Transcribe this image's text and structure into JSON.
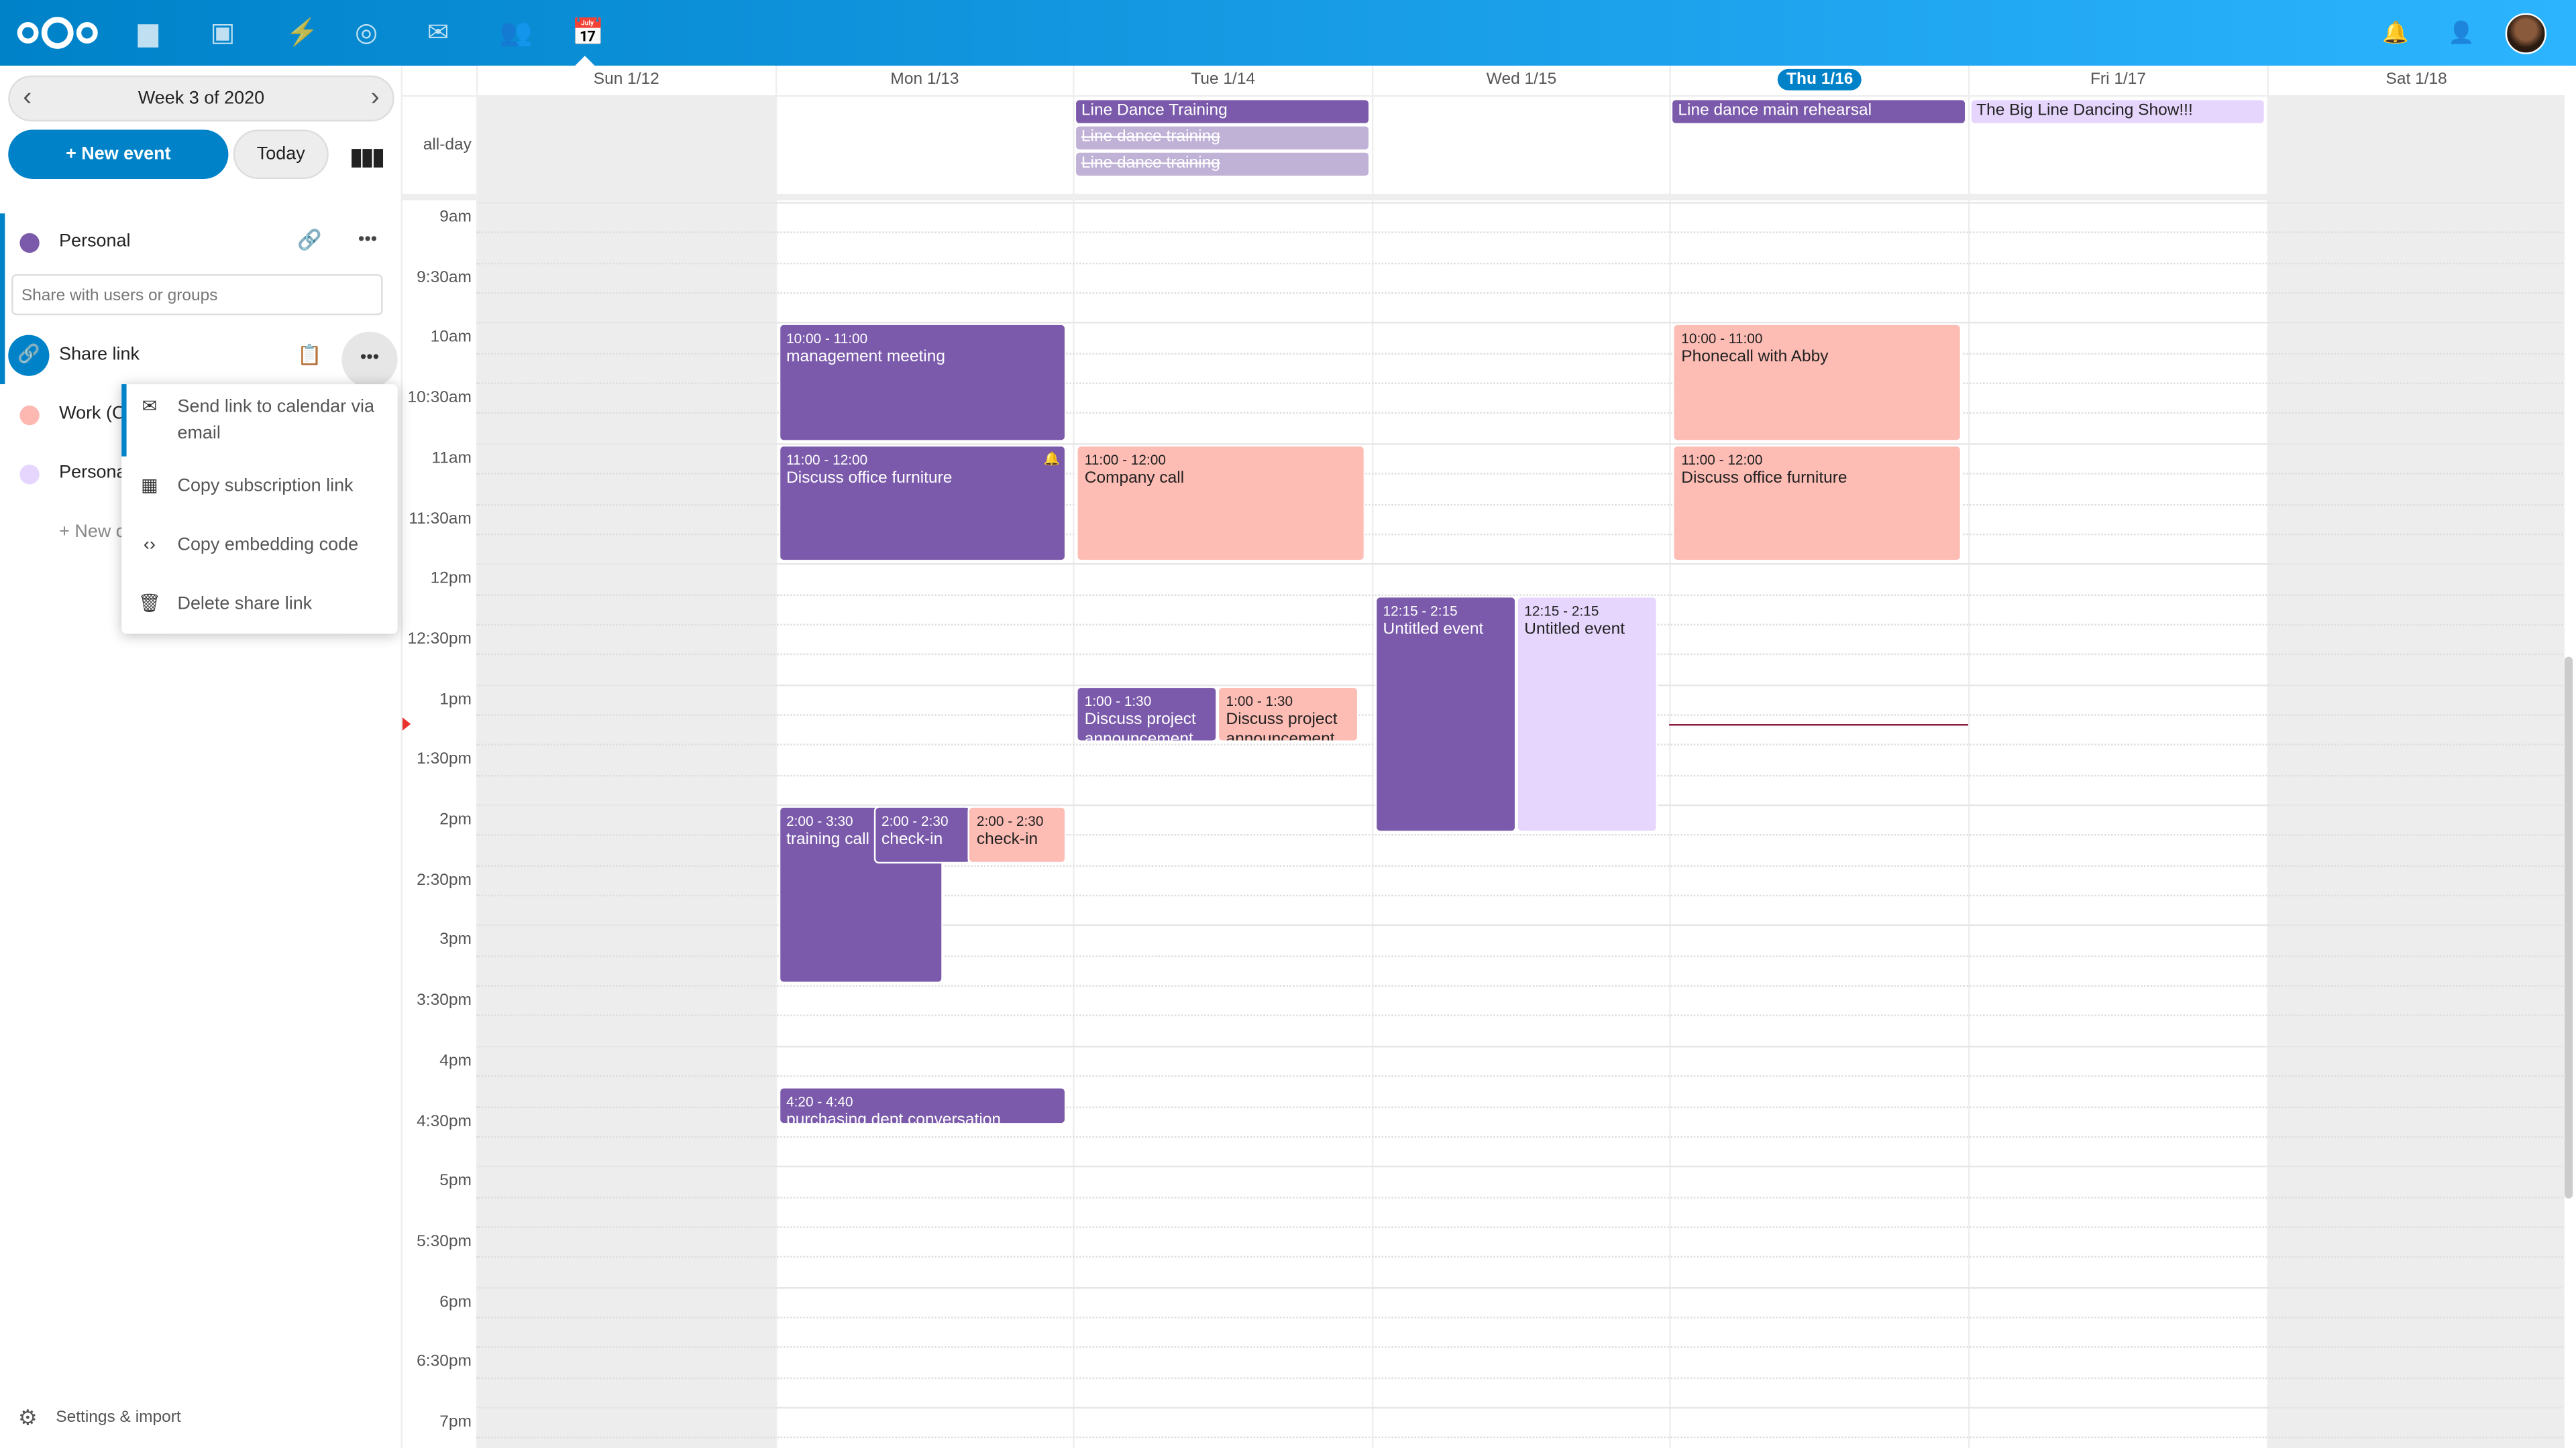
{
  "header": {
    "apps": [
      "files-icon",
      "photos-icon",
      "activity-icon",
      "talk-icon",
      "mail-icon",
      "contacts-icon",
      "calendar-icon"
    ]
  },
  "sidebar": {
    "week_label": "Week 3 of 2020",
    "new_event": "+ New event",
    "today": "Today",
    "calendars": [
      {
        "name": "Personal",
        "color": "#7b5aab"
      },
      {
        "name": "Work (C",
        "color": "#fdb9b1"
      },
      {
        "name": "Persona",
        "color": "#e6d6fd"
      }
    ],
    "share_placeholder": "Share with users or groups",
    "share_link": "Share link",
    "new_calendar": "+ New c",
    "settings": "Settings & import",
    "menu": [
      "Send link to calendar via email",
      "Copy subscription link",
      "Copy embedding code",
      "Delete share link"
    ]
  },
  "calendar": {
    "days": [
      "Sun 1/12",
      "Mon 1/13",
      "Tue 1/14",
      "Wed 1/15",
      "Thu 1/16",
      "Fri 1/17",
      "Sat 1/18"
    ],
    "today_index": 4,
    "allday_label": "all-day",
    "times": [
      "9am",
      "9:30am",
      "10am",
      "10:30am",
      "11am",
      "11:30am",
      "12pm",
      "12:30pm",
      "1pm",
      "1:30pm",
      "2pm",
      "2:30pm",
      "3pm",
      "3:30pm",
      "4pm",
      "4:30pm",
      "5pm",
      "5:30pm",
      "6pm",
      "6:30pm",
      "7pm"
    ],
    "allday_events": [
      {
        "title": "Line Dance Training",
        "day": 2,
        "color": "#7b5aab",
        "text": "#fff"
      },
      {
        "title": "Line dance training",
        "day": 2,
        "color": "#c0b1d6",
        "text": "#fff",
        "cancelled": true
      },
      {
        "title": "Line dance training",
        "day": 2,
        "color": "#c0b1d6",
        "text": "#fff",
        "cancelled": true
      },
      {
        "title": "Line dance main rehearsal",
        "day": 4,
        "color": "#7b5aab",
        "text": "#fff"
      },
      {
        "title": "The Big Line Dancing Show!!!",
        "day": 5,
        "color": "#e6d6fd",
        "text": "#222"
      }
    ],
    "events": [
      {
        "time": "10:00 - 11:00",
        "title": "management meeting",
        "day": 1,
        "start": 10,
        "end": 11,
        "color": "#7b5aab"
      },
      {
        "time": "11:00 - 12:00",
        "title": "Discuss office furniture",
        "day": 1,
        "start": 11,
        "end": 12,
        "color": "#7b5aab",
        "alarm": true
      },
      {
        "time": "2:00 - 3:30",
        "title": "training call",
        "day": 1,
        "start": 14,
        "end": 15.5,
        "color": "#7b5aab"
      },
      {
        "time": "2:00 - 2:30",
        "title": "check-in",
        "day": 1,
        "start": 14,
        "end": 14.5,
        "color": "#7b5aab"
      },
      {
        "time": "2:00 - 2:30",
        "title": "check-in",
        "day": 1,
        "start": 14,
        "end": 14.5,
        "color": "#fdbcb4"
      },
      {
        "time": "4:20 - 4:40",
        "title": "purchasing dept conversation",
        "day": 1,
        "start": 16.333,
        "end": 16.667,
        "color": "#7b5aab"
      },
      {
        "time": "11:00 - 12:00",
        "title": "Company call",
        "day": 2,
        "start": 11,
        "end": 12,
        "color": "#fdbcb4"
      },
      {
        "time": "1:00 - 1:30",
        "title": "Discuss project announcement",
        "day": 2,
        "start": 13,
        "end": 13.5,
        "color": "#7b5aab"
      },
      {
        "time": "1:00 - 1:30",
        "title": "Discuss project announcement",
        "day": 2,
        "start": 13,
        "end": 13.5,
        "color": "#fdbcb4"
      },
      {
        "time": "12:15 - 2:15",
        "title": "Untitled event",
        "day": 3,
        "start": 12.25,
        "end": 14.25,
        "color": "#7b5aab"
      },
      {
        "time": "12:15 - 2:15",
        "title": "Untitled event",
        "day": 3,
        "start": 12.25,
        "end": 14.25,
        "color": "#e6d6fd"
      },
      {
        "time": "10:00 - 11:00",
        "title": "Phonecall with Abby",
        "day": 4,
        "start": 10,
        "end": 11,
        "color": "#fdbcb4"
      },
      {
        "time": "11:00 - 12:00",
        "title": "Discuss office furniture",
        "day": 4,
        "start": 11,
        "end": 12,
        "color": "#fdbcb4"
      }
    ],
    "now_hour": 13.33
  }
}
